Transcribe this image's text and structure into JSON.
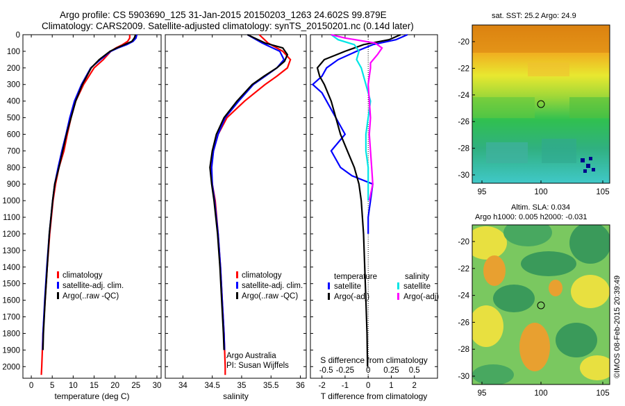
{
  "header": {
    "line1": "Argo profile: CS 5903690_125 31-Jan-2015 20150203_1263 24.602S 99.879E",
    "line2": "Climatology: CARS2009. Satellite-adjusted climatology: synTS_20150201.nc (0.14d later)"
  },
  "colors": {
    "climatology": "#ff0000",
    "satellite": "#0000ff",
    "argo": "#000000",
    "sat_salinity": "#00e5e5",
    "argo_salinity": "#ff00ff"
  },
  "depth_axis": {
    "ticks": [
      0,
      100,
      200,
      300,
      400,
      500,
      600,
      700,
      800,
      900,
      1000,
      1100,
      1200,
      1300,
      1400,
      1500,
      1600,
      1700,
      1800,
      1900,
      2000
    ]
  },
  "chart_data": [
    {
      "type": "line",
      "name": "temperature",
      "xlabel": "temperature (deg C)",
      "xlim": [
        -2,
        31
      ],
      "ylim": [
        0,
        2070
      ],
      "xticks": [
        0,
        5,
        10,
        15,
        20,
        25,
        30
      ],
      "legend": [
        "climatology",
        "satellite-adj. clim.",
        "Argo(..raw -QC)"
      ],
      "series": [
        {
          "name": "climatology",
          "color": "#ff0000",
          "depth": [
            0,
            20,
            40,
            60,
            80,
            100,
            150,
            200,
            300,
            400,
            500,
            600,
            700,
            800,
            900,
            1000,
            1200,
            1400,
            1600,
            1800,
            2000,
            2050
          ],
          "values": [
            23.5,
            23.5,
            23,
            21.8,
            20.2,
            19,
            17.2,
            15,
            12.5,
            10.6,
            9.5,
            8.6,
            7.8,
            6.6,
            5.8,
            5.2,
            4.4,
            3.8,
            3.3,
            2.8,
            2.5,
            2.4
          ]
        },
        {
          "name": "satellite-adj. clim.",
          "color": "#0000ff",
          "depth": [
            0,
            20,
            40,
            60,
            80,
            100,
            150,
            200,
            300,
            400,
            500,
            600,
            700,
            800,
            900,
            1000,
            1200,
            1400,
            1600,
            1800,
            1900
          ],
          "values": [
            25.2,
            25,
            24.3,
            22.8,
            20.7,
            19,
            16.5,
            14.2,
            12,
            10.3,
            9.2,
            8.3,
            7.3,
            6.4,
            5.6,
            5.1,
            4.3,
            3.7,
            3.2,
            2.8,
            2.7
          ]
        },
        {
          "name": "Argo(..raw -QC)",
          "color": "#000000",
          "depth": [
            0,
            20,
            40,
            60,
            80,
            100,
            150,
            200,
            300,
            400,
            500,
            600,
            700,
            800,
            900,
            1000,
            1200,
            1400,
            1600,
            1800,
            1900
          ],
          "values": [
            24.9,
            24.6,
            24,
            22.3,
            20.4,
            18.8,
            16.2,
            14.3,
            12.2,
            10.6,
            9.5,
            8.4,
            7.5,
            6.6,
            5.6,
            5.1,
            4.3,
            3.8,
            3.3,
            2.9,
            2.8
          ]
        }
      ]
    },
    {
      "type": "line",
      "name": "salinity",
      "xlabel": "salinity",
      "xlim": [
        33.7,
        36.1
      ],
      "ylim": [
        0,
        2070
      ],
      "xticks": [
        34,
        34.5,
        35,
        35.5,
        36
      ],
      "legend": [
        "climatology",
        "satellite-adj. clim.",
        "Argo(..raw -QC)"
      ],
      "annotation": [
        "Argo Australia",
        "PI: Susan Wijffels"
      ],
      "series": [
        {
          "name": "climatology",
          "color": "#ff0000",
          "depth": [
            0,
            50,
            100,
            150,
            200,
            250,
            300,
            400,
            500,
            600,
            700,
            800,
            900,
            1000,
            1200,
            1400,
            1600,
            1800,
            2000,
            2050
          ],
          "values": [
            35.3,
            35.45,
            35.7,
            35.83,
            35.78,
            35.6,
            35.4,
            35.05,
            34.75,
            34.6,
            34.52,
            34.48,
            34.5,
            34.55,
            34.6,
            34.64,
            34.67,
            34.7,
            34.72,
            34.72
          ]
        },
        {
          "name": "satellite-adj. clim.",
          "color": "#0000ff",
          "depth": [
            0,
            50,
            100,
            150,
            200,
            250,
            300,
            400,
            500,
            600,
            700,
            800,
            900,
            1000,
            1200,
            1400,
            1600,
            1800,
            1900
          ],
          "values": [
            35.1,
            35.35,
            35.65,
            35.72,
            35.6,
            35.4,
            35.2,
            34.95,
            34.72,
            34.6,
            34.52,
            34.49,
            34.5,
            34.54,
            34.6,
            34.64,
            34.67,
            34.7,
            34.71
          ]
        },
        {
          "name": "Argo(..raw -QC)",
          "color": "#000000",
          "depth": [
            0,
            50,
            80,
            120,
            160,
            200,
            250,
            300,
            400,
            500,
            600,
            700,
            800,
            900,
            1000,
            1200,
            1400,
            1600,
            1800,
            1900
          ],
          "values": [
            35.1,
            35.4,
            35.7,
            35.78,
            35.73,
            35.6,
            35.38,
            35.18,
            34.92,
            34.7,
            34.57,
            34.5,
            34.46,
            34.49,
            34.53,
            34.59,
            34.63,
            34.66,
            34.69,
            34.7
          ]
        }
      ]
    },
    {
      "type": "line",
      "name": "difference from climatology",
      "xlabel": "T difference from climatology",
      "xlabel_top": "S difference from climatology",
      "xlim": [
        -2.5,
        3
      ],
      "ylim": [
        0,
        2070
      ],
      "xticks": [
        -2,
        -1,
        0,
        1,
        2
      ],
      "xticks_top": [
        "-0.5",
        "-0.25",
        "0",
        "0.25",
        "0.5"
      ],
      "legend": [
        "temperature",
        "satellite",
        "Argo(-adj)",
        "salinity",
        "satellite",
        "Argo(-adj)"
      ],
      "series": [
        {
          "name": "T satellite",
          "color": "#0000ff",
          "depth": [
            0,
            30,
            60,
            100,
            150,
            200,
            250,
            300,
            350,
            400,
            500,
            600,
            700,
            800,
            850,
            900,
            1000,
            1100,
            1200
          ],
          "values": [
            1.7,
            1.2,
            0.2,
            -0.5,
            -1.3,
            -1.8,
            -2.0,
            -2.4,
            -2.0,
            -1.8,
            -1.4,
            -1.0,
            -1.6,
            -1.2,
            -0.7,
            0.2,
            0.1,
            0,
            0
          ]
        },
        {
          "name": "T Argo(-adj)",
          "color": "#000000",
          "depth": [
            0,
            30,
            60,
            100,
            150,
            200,
            250,
            300,
            400,
            500,
            600,
            700,
            800,
            900,
            1000,
            1200,
            1400,
            1600,
            1800,
            2000
          ],
          "values": [
            1.4,
            0.9,
            -0.2,
            -1.0,
            -1.9,
            -2.2,
            -2.1,
            -1.9,
            -1.6,
            -1.4,
            -1.2,
            -0.9,
            -0.6,
            -0.4,
            -0.3,
            -0.2,
            -0.15,
            -0.1,
            -0.05,
            -0.03
          ]
        },
        {
          "name": "S satellite",
          "color": "#00e5e5",
          "depth": [
            0,
            30,
            60,
            100,
            150,
            200,
            300,
            400,
            500,
            600,
            700,
            800,
            900,
            1000
          ],
          "values": [
            -1.6,
            -1.3,
            -0.6,
            -0.4,
            -0.5,
            -0.3,
            -0.1,
            0.1,
            0,
            -0.1,
            -0.1,
            0,
            0,
            0
          ]
        },
        {
          "name": "S Argo(-adj)",
          "color": "#ff00ff",
          "depth": [
            0,
            20,
            50,
            80,
            120,
            170,
            200,
            300,
            400,
            500,
            600,
            700,
            800,
            900,
            1000
          ],
          "values": [
            -1.6,
            -1.0,
            0.3,
            0.6,
            0.4,
            0.1,
            0.1,
            0,
            0.05,
            0.1,
            0.05,
            0.1,
            0.15,
            0.2,
            0.05
          ]
        }
      ]
    }
  ],
  "maps": {
    "top": {
      "title": "sat. SST: 25.2 Argo: 24.9",
      "yticks": [
        "-20",
        "-22",
        "-24",
        "-26",
        "-28",
        "-30"
      ],
      "xticks": [
        "95",
        "100",
        "105"
      ]
    },
    "bottom": {
      "title1": "Altim. SLA: 0.034",
      "title2": "Argo h1000: 0.005 h2000: -0.031",
      "yticks": [
        "-20",
        "-22",
        "-24",
        "-26",
        "-28",
        "-30"
      ],
      "xticks": [
        "95",
        "100",
        "105"
      ]
    }
  },
  "credit": "©IMOS 08-Feb-2015 20:39:49"
}
